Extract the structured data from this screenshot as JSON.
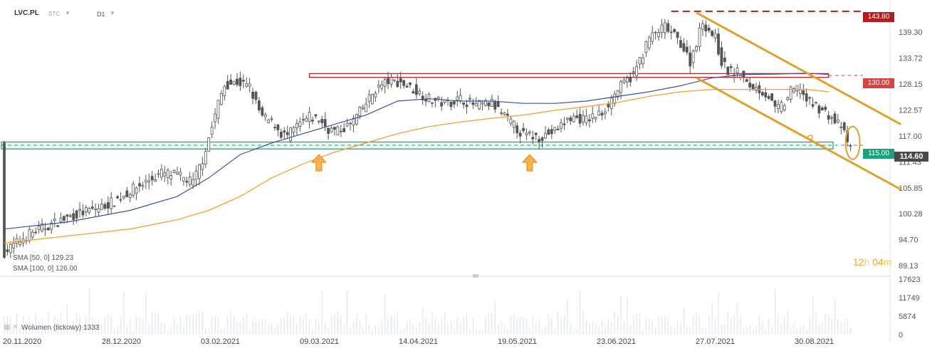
{
  "header": {
    "symbol": "LVC.PL",
    "exchange": "STC",
    "interval": "D1"
  },
  "indicators": {
    "sma50": "SMA [50, 0] 129.23",
    "sma100": "SMA [100, 0] 126.00",
    "volume": "Wolumen (tickowy) 1333"
  },
  "timer": {
    "hours": "12",
    "h_unit": "h",
    "minutes": "04",
    "m_unit": "m"
  },
  "question_mark": "?",
  "price_badges": {
    "high": "143.80",
    "resistance": "130.00",
    "support": "115.00",
    "current": "114.60"
  },
  "colors": {
    "resistance_red": "#c62828",
    "support_green": "#1aa37a",
    "channel_orange": "#e0a030",
    "sma50_blue": "#3d4fa0",
    "sma100_orange": "#f0a030",
    "candle_dark": "#555555"
  },
  "chart_data": {
    "type": "candlestick",
    "y_axis_ticks": [
      "139.30",
      "133.72",
      "128.15",
      "122.57",
      "117.00",
      "111.43",
      "105.85",
      "100.28",
      "94.70",
      "89.13"
    ],
    "x_axis_ticks": [
      "20.11.2020",
      "28.12.2020",
      "03.02.2021",
      "09.03.2021",
      "14.04.2021",
      "19.05.2021",
      "23.06.2021",
      "27.07.2021",
      "30.08.2021"
    ],
    "volume_axis_ticks": [
      "17623",
      "11749",
      "5874",
      "0"
    ],
    "ylim": [
      87,
      145
    ],
    "volume_max": 17623,
    "close_path": [
      [
        0,
        92
      ],
      [
        8,
        96
      ],
      [
        15,
        98
      ],
      [
        22,
        100
      ],
      [
        30,
        101.5
      ],
      [
        35,
        103
      ],
      [
        42,
        106
      ],
      [
        50,
        109
      ],
      [
        55,
        108.5
      ],
      [
        60,
        107
      ],
      [
        63,
        112
      ],
      [
        66,
        119
      ],
      [
        68,
        124
      ],
      [
        70,
        128
      ],
      [
        74,
        128.6
      ],
      [
        78,
        127.5
      ],
      [
        80,
        124
      ],
      [
        82,
        121
      ],
      [
        86,
        119.5
      ],
      [
        88,
        117.5
      ],
      [
        90,
        117
      ],
      [
        93,
        119
      ],
      [
        97,
        121
      ],
      [
        100,
        120.5
      ],
      [
        103,
        118.5
      ],
      [
        106,
        118
      ],
      [
        110,
        119.5
      ],
      [
        114,
        123
      ],
      [
        118,
        127
      ],
      [
        122,
        128.8
      ],
      [
        126,
        128.5
      ],
      [
        130,
        127
      ],
      [
        135,
        125
      ],
      [
        140,
        124
      ],
      [
        145,
        125
      ],
      [
        150,
        123.5
      ],
      [
        155,
        124
      ],
      [
        160,
        120.5
      ],
      [
        165,
        117.2
      ],
      [
        170,
        116.8
      ],
      [
        175,
        118
      ],
      [
        180,
        121
      ],
      [
        185,
        120.5
      ],
      [
        190,
        122
      ],
      [
        195,
        127
      ],
      [
        200,
        130.2
      ],
      [
        205,
        138
      ],
      [
        210,
        140.5
      ],
      [
        215,
        137
      ],
      [
        218,
        133
      ],
      [
        222,
        141.5
      ],
      [
        226,
        138
      ],
      [
        228,
        133
      ],
      [
        230,
        131
      ],
      [
        234,
        130.5
      ],
      [
        236,
        128
      ],
      [
        240,
        127
      ],
      [
        243,
        125.5
      ],
      [
        245,
        122.5
      ],
      [
        248,
        124
      ],
      [
        250,
        126.5
      ],
      [
        253,
        127.5
      ],
      [
        255,
        124.5
      ],
      [
        258,
        123.5
      ],
      [
        262,
        121.5
      ],
      [
        264,
        120
      ],
      [
        266,
        119.2
      ],
      [
        268,
        115.5
      ],
      [
        269,
        114.6
      ]
    ],
    "sma50_path": [
      [
        0,
        97
      ],
      [
        20,
        98.5
      ],
      [
        40,
        101
      ],
      [
        55,
        104
      ],
      [
        65,
        108
      ],
      [
        75,
        113
      ],
      [
        85,
        115.5
      ],
      [
        95,
        117.5
      ],
      [
        105,
        119.5
      ],
      [
        115,
        121.5
      ],
      [
        125,
        124.5
      ],
      [
        135,
        125
      ],
      [
        145,
        124.5
      ],
      [
        155,
        124.5
      ],
      [
        165,
        124
      ],
      [
        175,
        124
      ],
      [
        185,
        124.5
      ],
      [
        195,
        125.5
      ],
      [
        205,
        126.5
      ],
      [
        215,
        127.8
      ],
      [
        225,
        129.5
      ],
      [
        235,
        130.2
      ],
      [
        245,
        130.3
      ],
      [
        255,
        130.5
      ],
      [
        262,
        130.2
      ]
    ],
    "sma100_path": [
      [
        0,
        94
      ],
      [
        20,
        95.5
      ],
      [
        40,
        97
      ],
      [
        55,
        99
      ],
      [
        65,
        101
      ],
      [
        75,
        104
      ],
      [
        85,
        108
      ],
      [
        95,
        111
      ],
      [
        105,
        113.5
      ],
      [
        115,
        115.5
      ],
      [
        125,
        117.5
      ],
      [
        135,
        119
      ],
      [
        145,
        120
      ],
      [
        155,
        120.8
      ],
      [
        165,
        121.5
      ],
      [
        175,
        122.5
      ],
      [
        185,
        123.3
      ],
      [
        195,
        124.2
      ],
      [
        205,
        125.5
      ],
      [
        215,
        126.5
      ],
      [
        225,
        127
      ],
      [
        235,
        127
      ],
      [
        245,
        127
      ],
      [
        255,
        127
      ],
      [
        262,
        126.5
      ]
    ],
    "levels": [
      {
        "name": "143.80",
        "price": 143.8
      },
      {
        "name": "130.00",
        "price": 130.0
      },
      {
        "name": "115.00",
        "price": 115.0
      }
    ],
    "resistance_zone": [
      129.6,
      130.4
    ],
    "support_zone": [
      114.2,
      115.7
    ],
    "channel_upper": [
      [
        220,
        143.5
      ],
      [
        285,
        119.5
      ]
    ],
    "channel_lower": [
      [
        220,
        129.5
      ],
      [
        285,
        105.5
      ]
    ],
    "support_touch_days": [
      100,
      167
    ]
  }
}
